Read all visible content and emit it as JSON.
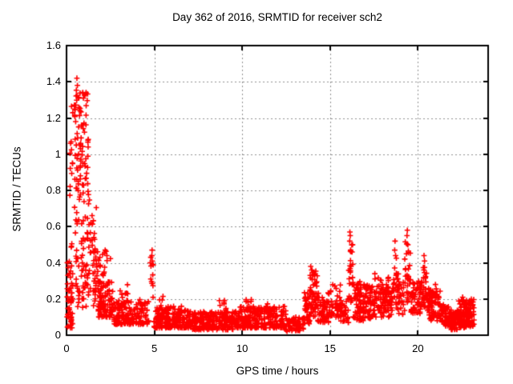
{
  "chart_data": {
    "type": "scatter",
    "title": "Day 362 of 2016, SRMTID for receiver sch2",
    "xlabel": "GPS time / hours",
    "ylabel": "SRMTID / TECUs",
    "xlim": [
      0,
      24
    ],
    "ylim": [
      0,
      1.6
    ],
    "xticks": [
      {
        "value": 0,
        "label": "0"
      },
      {
        "value": 5,
        "label": "5"
      },
      {
        "value": 10,
        "label": "10"
      },
      {
        "value": 15,
        "label": "15"
      },
      {
        "value": 20,
        "label": "20"
      }
    ],
    "yticks": [
      {
        "value": 0,
        "label": "0"
      },
      {
        "value": 0.2,
        "label": "0.2"
      },
      {
        "value": 0.4,
        "label": "0.4"
      },
      {
        "value": 0.6,
        "label": "0.6"
      },
      {
        "value": 0.8,
        "label": "0.8"
      },
      {
        "value": 1,
        "label": "1"
      },
      {
        "value": 1.2,
        "label": "1.2"
      },
      {
        "value": 1.4,
        "label": "1.4"
      },
      {
        "value": 1.6,
        "label": "1.6"
      }
    ],
    "grid": true,
    "legend": "none",
    "marker": "plus",
    "colors": {
      "points": "#ff0000",
      "grid": "#909090",
      "axis": "#000000",
      "text": "#000000",
      "background": "#ffffff"
    },
    "series": [
      {
        "name": "SRMTID",
        "segments_format": "[x_start_hr, x_end_hr, y_min_TECU, y_max_TECU, point_count, low_bias]",
        "density_segments": [
          [
            0.02,
            0.35,
            0.04,
            0.45,
            55,
            1.6
          ],
          [
            0.15,
            0.55,
            0.45,
            1.28,
            20,
            1.0
          ],
          [
            0.45,
            1.25,
            0.5,
            1.36,
            95,
            1.0
          ],
          [
            0.5,
            1.3,
            0.15,
            0.5,
            45,
            1.0
          ],
          [
            1.25,
            1.75,
            0.25,
            0.78,
            28,
            1.2
          ],
          [
            1.5,
            2.1,
            0.15,
            0.48,
            40,
            1.3
          ],
          [
            1.8,
            2.65,
            0.1,
            0.3,
            85,
            1.4
          ],
          [
            2.1,
            2.55,
            0.28,
            0.48,
            8,
            1.0
          ],
          [
            2.65,
            4.7,
            0.06,
            0.2,
            170,
            1.5
          ],
          [
            3.0,
            3.5,
            0.15,
            0.28,
            12,
            1.0
          ],
          [
            4.75,
            4.95,
            0.18,
            0.44,
            12,
            1.0
          ],
          [
            4.95,
            7.0,
            0.04,
            0.16,
            190,
            1.6
          ],
          [
            5.2,
            5.5,
            0.1,
            0.22,
            10,
            1.0
          ],
          [
            7.0,
            9.6,
            0.03,
            0.13,
            230,
            1.4
          ],
          [
            8.6,
            9.1,
            0.1,
            0.2,
            12,
            1.0
          ],
          [
            9.6,
            12.5,
            0.04,
            0.16,
            250,
            1.5
          ],
          [
            10.2,
            10.55,
            0.1,
            0.2,
            12,
            1.0
          ],
          [
            11.2,
            11.5,
            0.1,
            0.18,
            10,
            1.0
          ],
          [
            12.5,
            13.5,
            0.02,
            0.1,
            60,
            1.2
          ],
          [
            13.5,
            13.85,
            0.06,
            0.24,
            35,
            1.2
          ],
          [
            13.85,
            14.3,
            0.1,
            0.36,
            50,
            1.1
          ],
          [
            14.3,
            15.0,
            0.07,
            0.24,
            60,
            1.3
          ],
          [
            15.0,
            15.6,
            0.1,
            0.28,
            40,
            1.2
          ],
          [
            15.6,
            16.05,
            0.07,
            0.2,
            30,
            1.2
          ],
          [
            16.05,
            16.3,
            0.18,
            0.5,
            22,
            1.0
          ],
          [
            16.3,
            17.3,
            0.08,
            0.3,
            110,
            1.3
          ],
          [
            17.3,
            18.35,
            0.1,
            0.32,
            100,
            1.2
          ],
          [
            18.35,
            18.55,
            0.1,
            0.25,
            15,
            1.2
          ],
          [
            18.55,
            18.9,
            0.14,
            0.46,
            26,
            1.1
          ],
          [
            18.9,
            19.25,
            0.1,
            0.3,
            24,
            1.2
          ],
          [
            19.25,
            19.6,
            0.18,
            0.52,
            28,
            1.0
          ],
          [
            19.6,
            20.2,
            0.12,
            0.3,
            60,
            1.2
          ],
          [
            20.2,
            20.55,
            0.15,
            0.38,
            35,
            1.1
          ],
          [
            20.55,
            21.35,
            0.08,
            0.26,
            85,
            1.2
          ],
          [
            21.35,
            21.8,
            0.05,
            0.18,
            45,
            1.2
          ],
          [
            21.8,
            22.3,
            0.03,
            0.14,
            55,
            1.2
          ],
          [
            22.3,
            23.2,
            0.04,
            0.2,
            130,
            1.2
          ]
        ],
        "peaks": [
          [
            0.05,
            0.21
          ],
          [
            0.23,
            1.06
          ],
          [
            0.46,
            1.25
          ],
          [
            0.52,
            1.18
          ],
          [
            0.59,
            1.42
          ],
          [
            0.62,
            1.38
          ],
          [
            0.68,
            1.31
          ],
          [
            0.77,
            1.24
          ],
          [
            0.85,
            1.16
          ],
          [
            0.96,
            1.31
          ],
          [
            1.23,
            1.04
          ],
          [
            1.9,
            0.43
          ],
          [
            2.2,
            0.47
          ],
          [
            2.3,
            0.44
          ],
          [
            4.87,
            0.47
          ],
          [
            4.86,
            0.44
          ],
          [
            4.88,
            0.41
          ],
          [
            13.9,
            0.38
          ],
          [
            13.95,
            0.36
          ],
          [
            14.0,
            0.33
          ],
          [
            16.13,
            0.57
          ],
          [
            16.15,
            0.55
          ],
          [
            16.12,
            0.52
          ],
          [
            16.17,
            0.47
          ],
          [
            17.55,
            0.34
          ],
          [
            18.7,
            0.52
          ],
          [
            18.68,
            0.47
          ],
          [
            18.73,
            0.44
          ],
          [
            19.4,
            0.58
          ],
          [
            19.38,
            0.55
          ],
          [
            19.43,
            0.5
          ],
          [
            19.35,
            0.45
          ],
          [
            20.35,
            0.44
          ],
          [
            20.38,
            0.41
          ],
          [
            21.0,
            0.28
          ],
          [
            22.55,
            0.21
          ]
        ]
      }
    ]
  }
}
